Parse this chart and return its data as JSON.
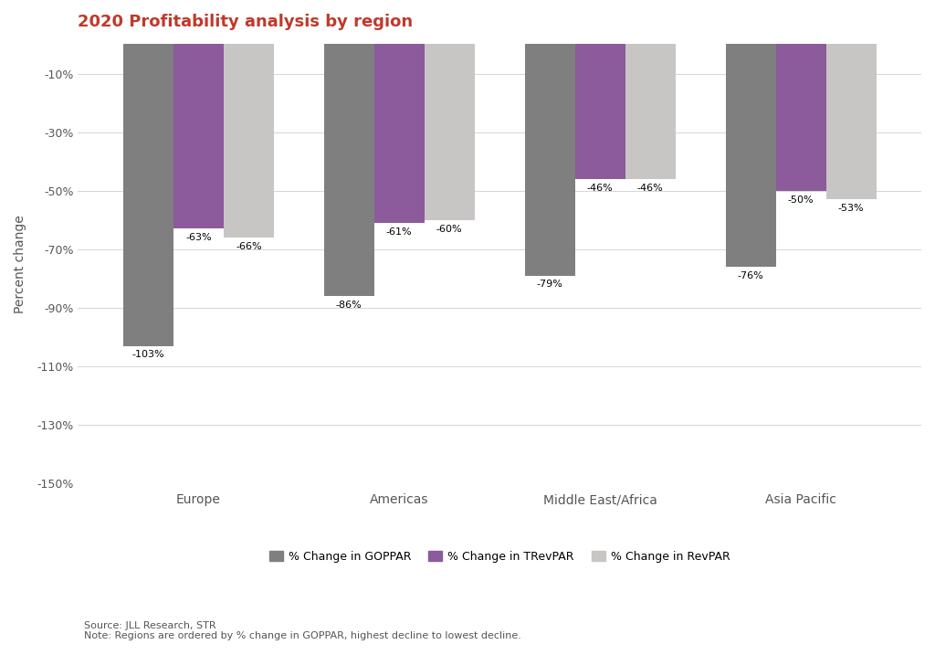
{
  "title": "2020 Profitability analysis by region",
  "title_color": "#c0392b",
  "categories": [
    "Europe",
    "Americas",
    "Middle East/Africa",
    "Asia Pacific"
  ],
  "goppar": [
    -103,
    -86,
    -79,
    -76
  ],
  "trevpar": [
    -63,
    -61,
    -46,
    -50
  ],
  "revpar": [
    -66,
    -60,
    -46,
    -53
  ],
  "goppar_label": "% Change in GOPPAR",
  "trevpar_label": "% Change in TRevPAR",
  "revpar_label": "% Change in RevPAR",
  "goppar_color": "#7f7f7f",
  "trevpar_color": "#8B5B9B",
  "revpar_color": "#C8C5C5",
  "ylim": [
    -150,
    0
  ],
  "yticks": [
    -150,
    -130,
    -110,
    -90,
    -70,
    -50,
    -30,
    -10
  ],
  "ytick_labels": [
    "-150%",
    "-130%",
    "-110%",
    "-90%",
    "-70%",
    "-50%",
    "-30%",
    "-10%"
  ],
  "ylabel": "Percent change",
  "source_text": "Source: JLL Research, STR",
  "note_text": "Note: Regions are ordered by % change in GOPPAR, highest decline to lowest decline.",
  "background_color": "#ffffff",
  "font_size_title": 13,
  "font_size_ticks": 9,
  "font_size_labels": 8,
  "font_size_legend": 9,
  "font_size_source": 8
}
